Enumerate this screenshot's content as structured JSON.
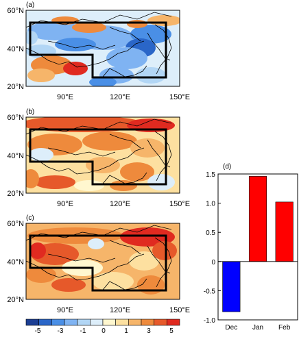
{
  "colors": {
    "scale": [
      "#1c3f94",
      "#2a66c8",
      "#4a8fe6",
      "#7fb3f2",
      "#b2d6f5",
      "#ddeefa",
      "#fff7cf",
      "#fde0a0",
      "#f6b56a",
      "#ee8a3c",
      "#e6592a",
      "#e02a20"
    ],
    "box": "#000000",
    "bar_positive": "#ff0000",
    "bar_negative": "#0000ff"
  },
  "maps": [
    {
      "label": "(a)",
      "pattern": "mostly-negative"
    },
    {
      "label": "(b)",
      "pattern": "mostly-positive"
    },
    {
      "label": "(c)",
      "pattern": "positive"
    }
  ],
  "map_axes": {
    "lat_labels": [
      "60°N",
      "40°N",
      "20°N"
    ],
    "lon_labels": [
      "90°E",
      "120°E",
      "150°E"
    ]
  },
  "colorbar": {
    "tick_labels": [
      "-5",
      "-3",
      "-1",
      "0",
      "1",
      "3",
      "5"
    ]
  },
  "chart_data": {
    "type": "bar",
    "panel_label": "(d)",
    "categories": [
      "Dec",
      "Jan",
      "Feb"
    ],
    "values": [
      -0.86,
      1.46,
      1.02
    ],
    "ylim": [
      -1.0,
      1.5
    ],
    "yticks": [
      -1.0,
      -0.5,
      0,
      0.5,
      1.0,
      1.5
    ],
    "ytick_labels": [
      "-1.0",
      "-0.5",
      "0",
      "0.5",
      "1.0",
      "1.5"
    ],
    "bar_colors": [
      "#0000ff",
      "#ff0000",
      "#ff0000"
    ],
    "zero_line": true,
    "grid": false
  }
}
